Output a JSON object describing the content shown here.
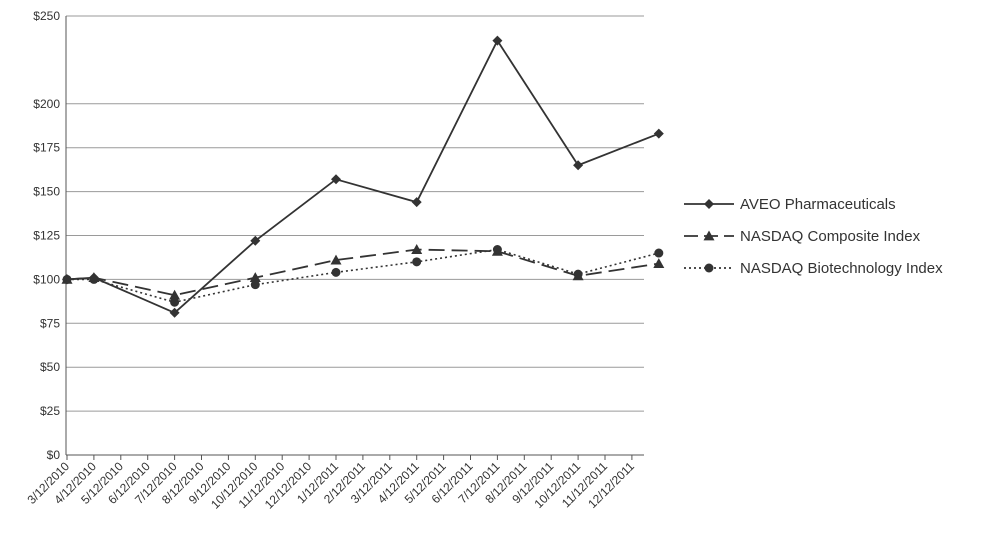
{
  "chart_data": {
    "type": "line",
    "title": "",
    "xlabel": "",
    "ylabel": "",
    "ylim": [
      0,
      250
    ],
    "yticks": [
      "$0",
      "$25",
      "$50",
      "$75",
      "$100",
      "$125",
      "$150",
      "$175",
      "$200",
      "$250"
    ],
    "ytick_values": [
      0,
      25,
      50,
      75,
      100,
      125,
      150,
      175,
      200,
      250
    ],
    "categories": [
      "3/12/2010",
      "4/12/2010",
      "5/12/2010",
      "6/12/2010",
      "7/12/2010",
      "8/12/2010",
      "9/12/2010",
      "10/12/2010",
      "11/12/2010",
      "12/12/2010",
      "1/12/2011",
      "2/12/2011",
      "3/12/2011",
      "4/12/2011",
      "5/12/2011",
      "6/12/2011",
      "7/12/2011",
      "8/12/2011",
      "9/12/2011",
      "10/12/2011",
      "11/12/2011",
      "12/12/2011"
    ],
    "grid": true,
    "legend_position": "right",
    "series": [
      {
        "name": "AVEO Pharmaceuticals",
        "marker": "diamond",
        "dash": "solid",
        "color": "#333333",
        "points": [
          [
            0,
            100
          ],
          [
            1,
            101
          ],
          [
            4,
            81
          ],
          [
            7,
            122
          ],
          [
            10,
            157
          ],
          [
            13,
            144
          ],
          [
            16,
            236
          ],
          [
            19,
            165
          ],
          [
            22,
            183
          ]
        ]
      },
      {
        "name": "NASDAQ Composite Index",
        "marker": "triangle",
        "dash": "dashed",
        "color": "#333333",
        "points": [
          [
            0,
            100
          ],
          [
            1,
            101
          ],
          [
            4,
            91
          ],
          [
            7,
            101
          ],
          [
            10,
            111
          ],
          [
            13,
            117
          ],
          [
            16,
            116
          ],
          [
            19,
            102
          ],
          [
            22,
            109
          ]
        ]
      },
      {
        "name": "NASDAQ Biotechnology Index",
        "marker": "circle",
        "dash": "dotted",
        "color": "#333333",
        "points": [
          [
            0,
            100
          ],
          [
            1,
            100
          ],
          [
            4,
            87
          ],
          [
            7,
            97
          ],
          [
            10,
            104
          ],
          [
            13,
            110
          ],
          [
            16,
            117
          ],
          [
            19,
            103
          ],
          [
            22,
            115
          ]
        ]
      }
    ]
  }
}
